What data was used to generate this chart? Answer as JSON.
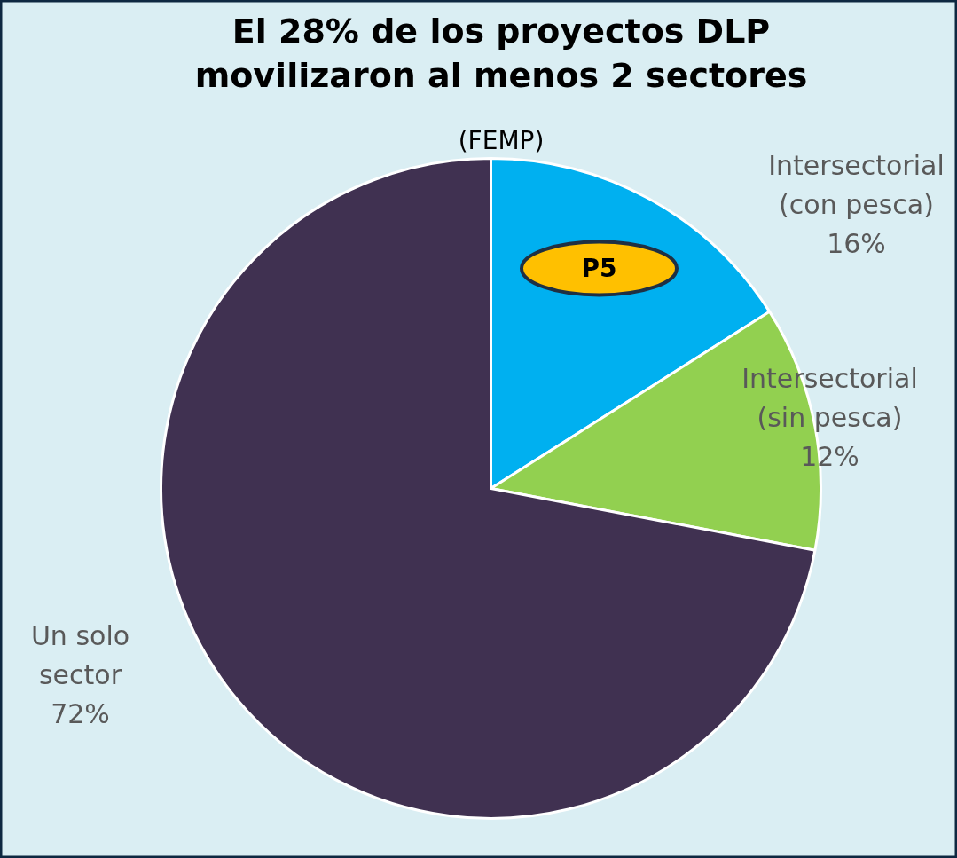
{
  "chart_data": {
    "type": "pie",
    "title": "El 28% de los proyectos DLP\nmovilizaron al menos 2 sectores",
    "subtitle": "(FEMP)",
    "categories": [
      "Intersectorial\n(con pesca)",
      "Intersectorial\n(sin pesca)",
      "Un solo\nsector"
    ],
    "values": [
      16,
      12,
      72
    ],
    "colors": [
      "#00b0f0",
      "#92d050",
      "#403151"
    ],
    "value_labels": [
      "16%",
      "12%",
      "72%"
    ],
    "annotations": [
      "P5"
    ]
  }
}
